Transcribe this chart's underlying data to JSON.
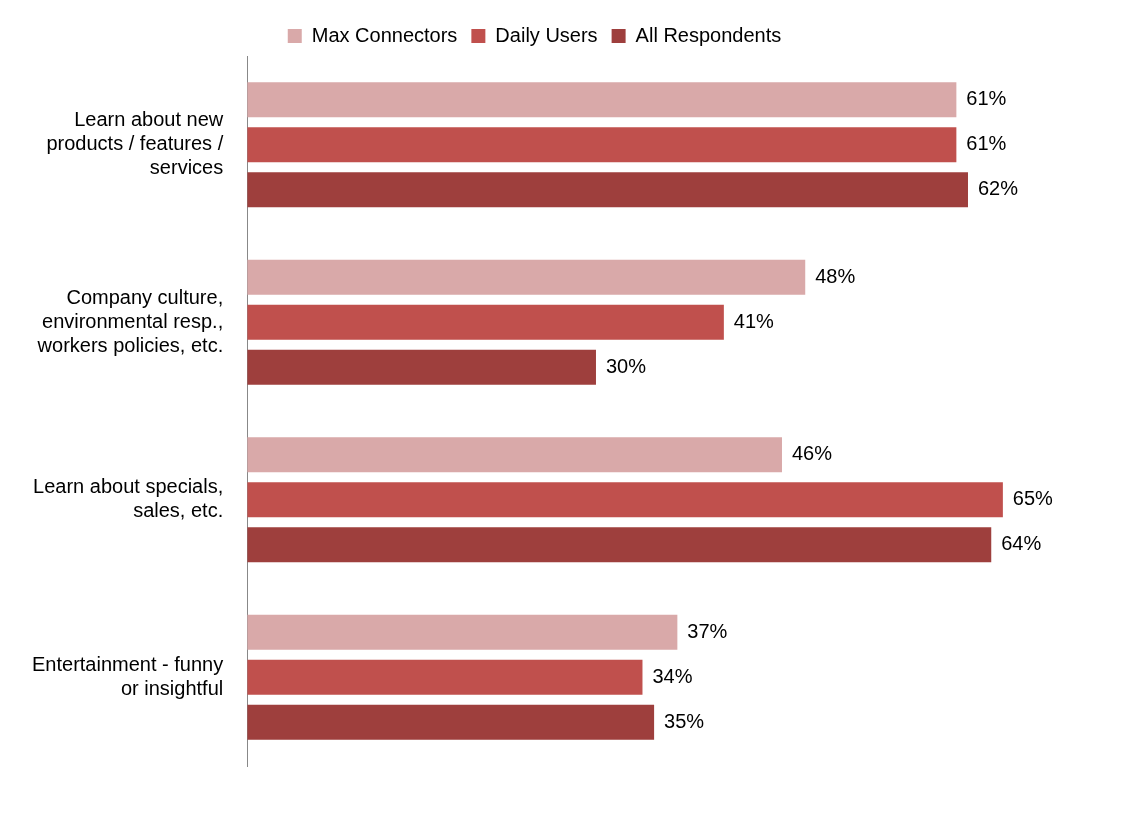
{
  "chart_data": {
    "type": "bar",
    "orientation": "horizontal",
    "categories": [
      "Learn about new products / features / services",
      "Company culture, environmental resp., workers policies, etc.",
      "Learn about specials, sales, etc.",
      "Entertainment - funny or insightful"
    ],
    "series": [
      {
        "name": "Max Connectors",
        "color": "#d9a9a9",
        "values": [
          61,
          48,
          46,
          37
        ],
        "value_labels": [
          "61%",
          "48%",
          "46%",
          "37%"
        ]
      },
      {
        "name": "Daily Users",
        "color": "#c0504d",
        "values": [
          61,
          41,
          65,
          34
        ],
        "value_labels": [
          "61%",
          "41%",
          "65%",
          "34%"
        ]
      },
      {
        "name": "All Respondents",
        "color": "#9e3f3d",
        "values": [
          62,
          30,
          64,
          35
        ],
        "value_labels": [
          "62%",
          "30%",
          "64%",
          "35%"
        ]
      }
    ],
    "grid": false,
    "legend": "top"
  }
}
